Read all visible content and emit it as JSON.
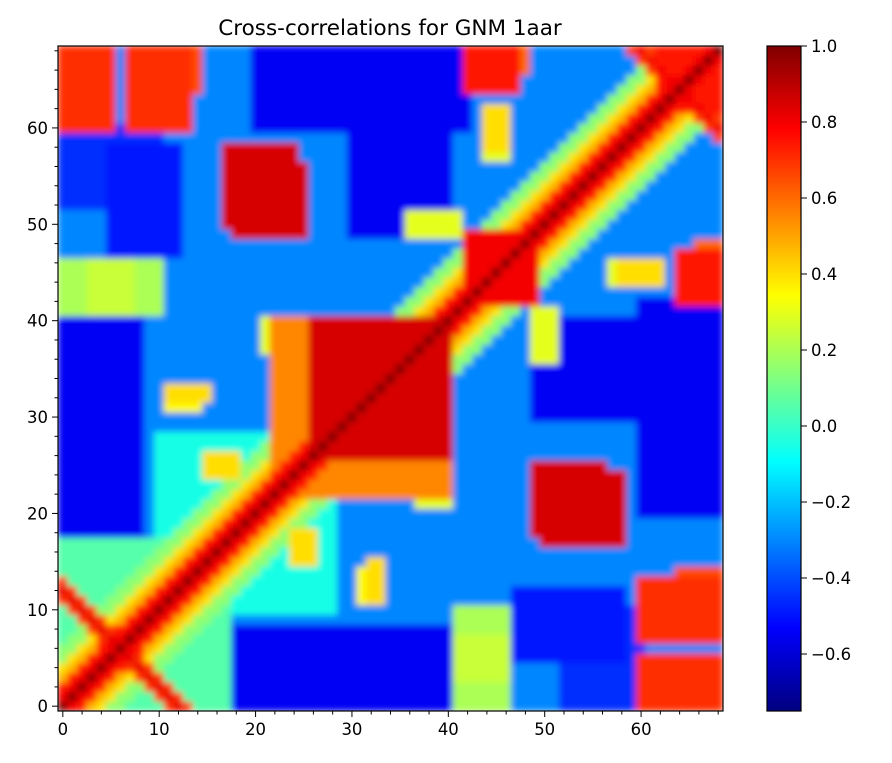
{
  "chart_data": {
    "type": "heatmap",
    "title": "Cross-correlations for GNM 1aar",
    "xlabel": "",
    "ylabel": "",
    "n": 69,
    "xlim": [
      -0.5,
      68.5
    ],
    "ylim": [
      -0.5,
      68.5
    ],
    "x_ticks": [
      0,
      10,
      20,
      30,
      40,
      50,
      60
    ],
    "y_ticks": [
      0,
      10,
      20,
      30,
      40,
      50,
      60
    ],
    "x_tick_labels": [
      "0",
      "10",
      "20",
      "30",
      "40",
      "50",
      "60"
    ],
    "y_tick_labels": [
      "0",
      "10",
      "20",
      "30",
      "40",
      "50",
      "60"
    ],
    "colormap": "jet",
    "color_range": [
      -0.75,
      1.0
    ],
    "colorbar_ticks": [
      1.0,
      0.8,
      0.6,
      0.4,
      0.2,
      0.0,
      -0.2,
      -0.4,
      -0.6
    ],
    "colorbar_tick_labels": [
      "1.0",
      "0.8",
      "0.6",
      "0.4",
      "0.2",
      "0.0",
      "−0.2",
      "−0.4",
      "−0.6"
    ],
    "symmetric": true,
    "baseline": -0.3,
    "diagonal": 1.0,
    "blocks": [
      {
        "rows": [
          26,
          40
        ],
        "cols": [
          26,
          40
        ],
        "value": 0.85
      },
      {
        "rows": [
          22,
          40
        ],
        "cols": [
          22,
          40
        ],
        "value": 0.55
      },
      {
        "rows": [
          42,
          49
        ],
        "cols": [
          42,
          49
        ],
        "value": 0.8
      },
      {
        "rows": [
          0,
          17
        ],
        "cols": [
          0,
          17
        ],
        "value": 0.05
      },
      {
        "rows": [
          10,
          28
        ],
        "cols": [
          10,
          28
        ],
        "value": -0.05
      },
      {
        "rows": [
          62,
          68
        ],
        "cols": [
          62,
          68
        ],
        "value": 0.75
      }
    ],
    "anti_diagonals": [
      {
        "sum": 12,
        "range": [
          0,
          12
        ],
        "value": 0.82
      },
      {
        "sum": 128,
        "range": [
          60,
          68
        ],
        "value": 0.8
      }
    ],
    "off_diagonal_regions": [
      {
        "rows": [
          49,
          56
        ],
        "cols": [
          18,
          25
        ],
        "value": 0.85
      },
      {
        "rows": [
          17,
          24
        ],
        "cols": [
          50,
          58
        ],
        "value": 0.85
      },
      {
        "rows": [
          60,
          68
        ],
        "cols": [
          0,
          5
        ],
        "value": 0.7
      },
      {
        "rows": [
          60,
          68
        ],
        "cols": [
          7,
          13
        ],
        "value": 0.7
      },
      {
        "rows": [
          66,
          68
        ],
        "cols": [
          42,
          48
        ],
        "value": 0.6
      },
      {
        "rows": [
          0,
          5
        ],
        "cols": [
          61,
          68
        ],
        "value": 0.7
      },
      {
        "rows": [
          42,
          47
        ],
        "cols": [
          64,
          68
        ],
        "value": 0.75
      },
      {
        "rows": [
          10,
          14
        ],
        "cols": [
          64,
          68
        ],
        "value": 0.65
      },
      {
        "rows": [
          41,
          46
        ],
        "cols": [
          0,
          10
        ],
        "value": 0.2
      },
      {
        "rows": [
          3,
          7
        ],
        "cols": [
          41,
          46
        ],
        "value": 0.25
      },
      {
        "rows": [
          58,
          62
        ],
        "cols": [
          44,
          46
        ],
        "value": 0.4
      },
      {
        "rows": [
          49,
          51
        ],
        "cols": [
          36,
          41
        ],
        "value": 0.3
      },
      {
        "rows": [
          31,
          33
        ],
        "cols": [
          11,
          14
        ],
        "value": 0.35
      },
      {
        "rows": [
          15,
          18
        ],
        "cols": [
          24,
          26
        ],
        "value": 0.4
      },
      {
        "rows": [
          11,
          15
        ],
        "cols": [
          32,
          33
        ],
        "value": 0.4
      },
      {
        "rows": [
          37,
          40
        ],
        "cols": [
          21,
          23
        ],
        "value": 0.3
      },
      {
        "rows": [
          44,
          46
        ],
        "cols": [
          57,
          61
        ],
        "value": 0.3
      },
      {
        "rows": [
          60,
          68
        ],
        "cols": [
          23,
          42
        ],
        "value": -0.55
      },
      {
        "rows": [
          17,
          26
        ],
        "cols": [
          0,
          8
        ],
        "value": -0.55
      },
      {
        "rows": [
          49,
          60
        ],
        "cols": [
          30,
          40
        ],
        "value": -0.55
      },
      {
        "rows": [
          20,
          40
        ],
        "cols": [
          60,
          68
        ],
        "value": -0.55
      },
      {
        "rows": [
          0,
          8
        ],
        "cols": [
          20,
          40
        ],
        "value": -0.55
      },
      {
        "rows": [
          30,
          40
        ],
        "cols": [
          0,
          8
        ],
        "value": -0.5
      },
      {
        "rows": [
          5,
          12
        ],
        "cols": [
          47,
          58
        ],
        "value": -0.5
      },
      {
        "rows": [
          52,
          60
        ],
        "cols": [
          0,
          10
        ],
        "value": -0.45
      }
    ]
  }
}
